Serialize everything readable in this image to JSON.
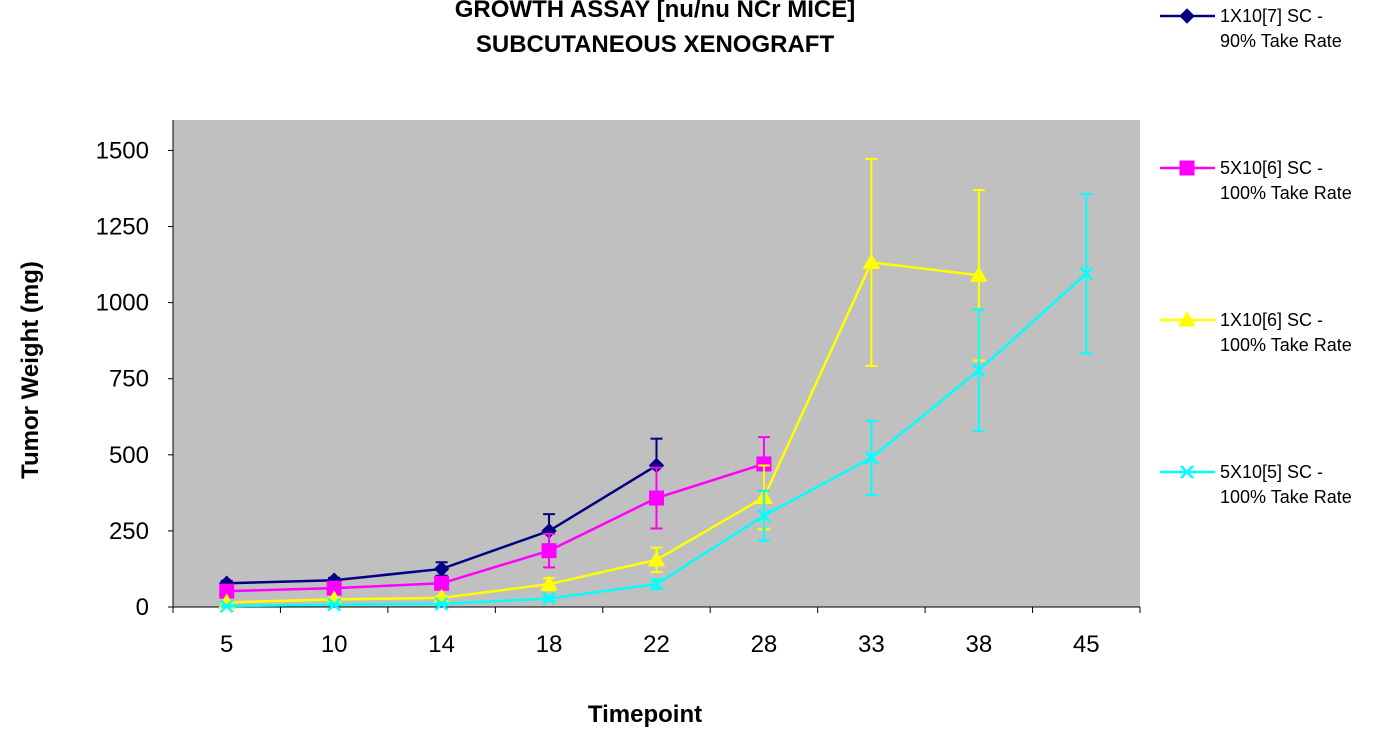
{
  "chart_data": {
    "type": "line",
    "title_lines": [
      "GROWTH ASSAY [nu/nu NCr MICE]",
      "SUBCUTANEOUS XENOGRAFT"
    ],
    "xlabel": "Timepoint",
    "ylabel": "Tumor Weight (mg)",
    "categories": [
      "5",
      "10",
      "14",
      "18",
      "22",
      "28",
      "33",
      "38",
      "45"
    ],
    "ylim": [
      0,
      1600
    ],
    "yticks": [
      0,
      250,
      500,
      750,
      1000,
      1250,
      1500
    ],
    "grid": false,
    "plot_background": "#c0c0c0",
    "legend_position": "right",
    "series": [
      {
        "name_lines": [
          "1X10[7] SC -",
          "90% Take Rate"
        ],
        "color": "#000080",
        "marker": "diamond",
        "values": [
          78,
          88,
          125,
          250,
          465,
          null,
          null,
          null,
          null
        ],
        "errors": [
          8,
          8,
          22,
          55,
          88,
          null,
          null,
          null,
          null
        ]
      },
      {
        "name_lines": [
          "5X10[6] SC -",
          "100% Take Rate"
        ],
        "color": "#ff00ff",
        "marker": "square",
        "values": [
          52,
          62,
          78,
          185,
          358,
          470,
          null,
          null,
          null
        ],
        "errors": [
          5,
          6,
          8,
          55,
          100,
          88,
          null,
          null,
          null
        ]
      },
      {
        "name_lines": [
          "1X10[6] SC -",
          "100% Take Rate"
        ],
        "color": "#ffff00",
        "marker": "triangle",
        "values": [
          15,
          25,
          30,
          75,
          155,
          360,
          1132,
          1090,
          null
        ],
        "errors": [
          4,
          5,
          6,
          20,
          40,
          105,
          340,
          280,
          null
        ]
      },
      {
        "name_lines": [
          "5X10[5] SC -",
          "100% Take Rate"
        ],
        "color": "#00ffff",
        "marker": "x",
        "values": [
          3,
          8,
          10,
          28,
          75,
          300,
          490,
          778,
          1095
        ],
        "errors": [
          2,
          3,
          3,
          8,
          15,
          82,
          122,
          200,
          262
        ]
      }
    ]
  }
}
